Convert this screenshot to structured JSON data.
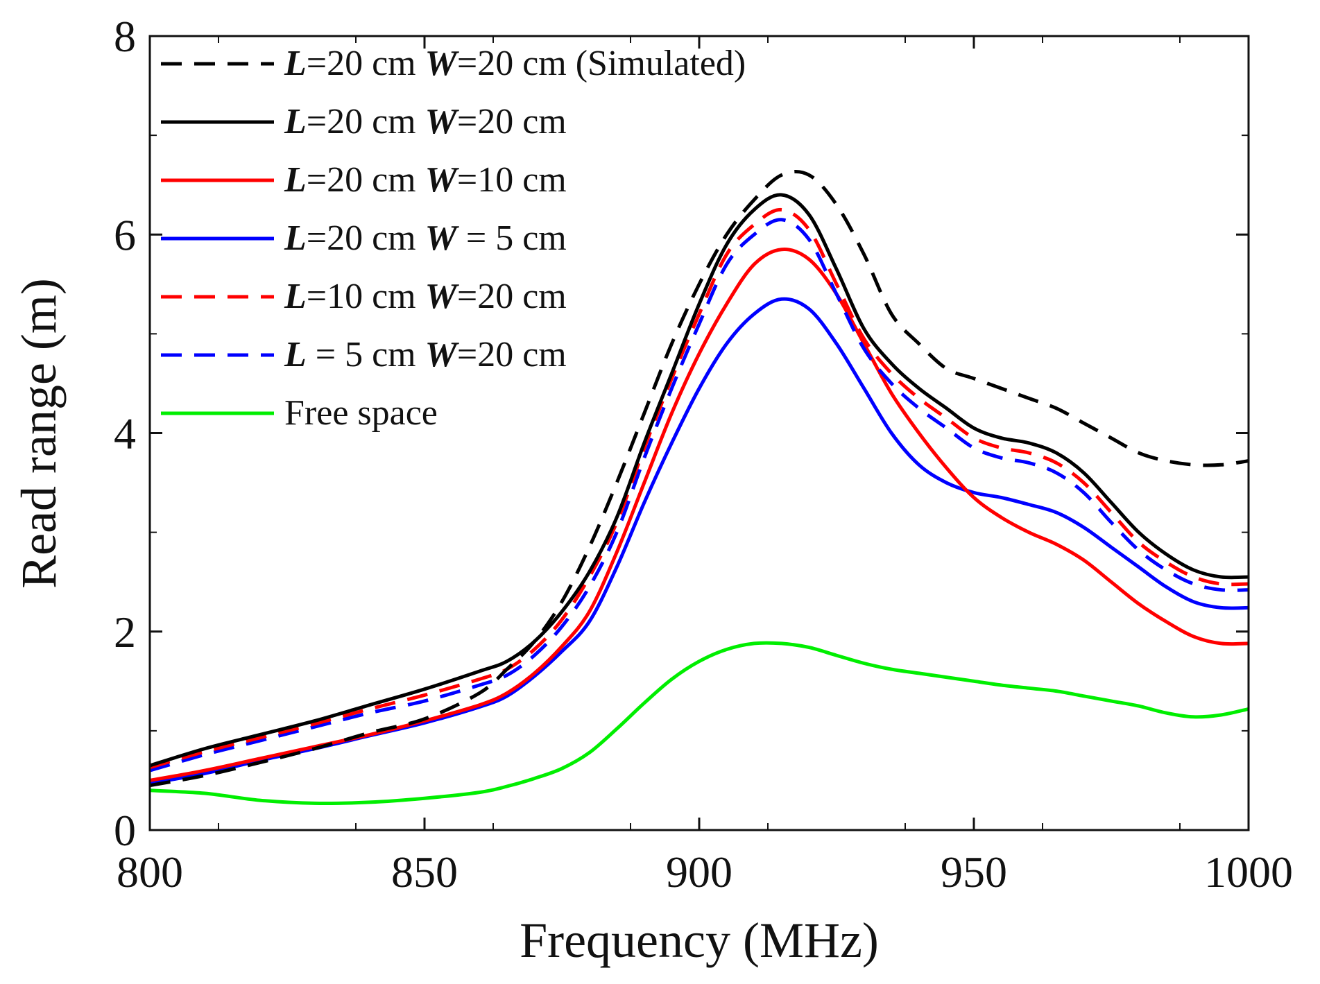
{
  "chart_data": {
    "type": "line",
    "title": "",
    "xlabel": "Frequency (MHz)",
    "ylabel": "Read range (m)",
    "xlim": [
      800,
      1000
    ],
    "ylim": [
      0,
      8
    ],
    "xticks": [
      "800",
      "850",
      "900",
      "950",
      "1000"
    ],
    "yticks": [
      "0",
      "2",
      "4",
      "6",
      "8"
    ],
    "legend_position": "top-left",
    "x": [
      800,
      810,
      820,
      830,
      840,
      850,
      860,
      865,
      870,
      875,
      880,
      885,
      890,
      895,
      900,
      905,
      910,
      915,
      920,
      925,
      930,
      935,
      940,
      945,
      950,
      955,
      960,
      965,
      970,
      975,
      980,
      985,
      990,
      995,
      1000
    ],
    "series": [
      {
        "name": "L=20 cm W=20 cm (Simulated)",
        "legend_parts": [
          {
            "text": "L",
            "bi": true
          },
          {
            "text": "=20 cm ",
            "bi": false
          },
          {
            "text": "W",
            "bi": true
          },
          {
            "text": "=20 cm (Simulated)",
            "bi": false
          }
        ],
        "color": "#000000",
        "dashed": true,
        "values": [
          0.45,
          0.55,
          0.68,
          0.82,
          0.98,
          1.12,
          1.38,
          1.62,
          1.9,
          2.3,
          2.85,
          3.5,
          4.2,
          4.9,
          5.5,
          6.0,
          6.35,
          6.6,
          6.6,
          6.3,
          5.8,
          5.2,
          4.9,
          4.65,
          4.55,
          4.45,
          4.35,
          4.25,
          4.1,
          3.95,
          3.8,
          3.72,
          3.68,
          3.68,
          3.72
        ]
      },
      {
        "name": "L=20 cm W=20 cm",
        "legend_parts": [
          {
            "text": "L",
            "bi": true
          },
          {
            "text": "=20 cm ",
            "bi": false
          },
          {
            "text": "W",
            "bi": true
          },
          {
            "text": "=20 cm",
            "bi": false
          }
        ],
        "color": "#000000",
        "dashed": false,
        "values": [
          0.65,
          0.82,
          0.96,
          1.1,
          1.26,
          1.42,
          1.6,
          1.7,
          1.9,
          2.2,
          2.6,
          3.15,
          3.9,
          4.6,
          5.3,
          5.9,
          6.25,
          6.4,
          6.2,
          5.65,
          5.05,
          4.7,
          4.45,
          4.25,
          4.05,
          3.95,
          3.9,
          3.8,
          3.6,
          3.3,
          3.0,
          2.78,
          2.62,
          2.55,
          2.55
        ]
      },
      {
        "name": "L=20 cm W=10 cm",
        "legend_parts": [
          {
            "text": "L",
            "bi": true
          },
          {
            "text": "=20 cm ",
            "bi": false
          },
          {
            "text": "W",
            "bi": true
          },
          {
            "text": "=10 cm",
            "bi": false
          }
        ],
        "color": "#ff0000",
        "dashed": false,
        "values": [
          0.5,
          0.6,
          0.72,
          0.84,
          0.96,
          1.1,
          1.26,
          1.38,
          1.58,
          1.85,
          2.2,
          2.8,
          3.5,
          4.2,
          4.8,
          5.3,
          5.7,
          5.85,
          5.75,
          5.4,
          4.9,
          4.4,
          4.0,
          3.65,
          3.35,
          3.15,
          3.0,
          2.88,
          2.72,
          2.5,
          2.28,
          2.1,
          1.95,
          1.88,
          1.88
        ]
      },
      {
        "name": "L=20 cm W = 5 cm",
        "legend_parts": [
          {
            "text": "L",
            "bi": true
          },
          {
            "text": "=20 cm ",
            "bi": false
          },
          {
            "text": "W",
            "bi": true
          },
          {
            "text": " = 5 cm",
            "bi": false
          }
        ],
        "color": "#0000ff",
        "dashed": false,
        "values": [
          0.47,
          0.57,
          0.7,
          0.82,
          0.95,
          1.08,
          1.24,
          1.35,
          1.55,
          1.8,
          2.1,
          2.65,
          3.3,
          3.9,
          4.45,
          4.9,
          5.2,
          5.35,
          5.25,
          4.9,
          4.45,
          4.0,
          3.68,
          3.5,
          3.4,
          3.35,
          3.28,
          3.2,
          3.05,
          2.85,
          2.65,
          2.45,
          2.3,
          2.24,
          2.24
        ]
      },
      {
        "name": "L=10 cm W=20 cm",
        "legend_parts": [
          {
            "text": "L",
            "bi": true
          },
          {
            "text": "=10 cm ",
            "bi": false
          },
          {
            "text": "W",
            "bi": true
          },
          {
            "text": "=20 cm",
            "bi": false
          }
        ],
        "color": "#ff0000",
        "dashed": true,
        "values": [
          0.63,
          0.79,
          0.93,
          1.07,
          1.22,
          1.36,
          1.52,
          1.62,
          1.82,
          2.12,
          2.55,
          3.1,
          3.85,
          4.55,
          5.2,
          5.8,
          6.1,
          6.25,
          6.05,
          5.5,
          4.95,
          4.6,
          4.35,
          4.15,
          3.95,
          3.85,
          3.8,
          3.7,
          3.5,
          3.2,
          2.9,
          2.7,
          2.55,
          2.48,
          2.48
        ]
      },
      {
        "name": "L = 5 cm W=20 cm",
        "legend_parts": [
          {
            "text": "L",
            "bi": true
          },
          {
            "text": " = 5 cm ",
            "bi": false
          },
          {
            "text": "W",
            "bi": true
          },
          {
            "text": "=20 cm",
            "bi": false
          }
        ],
        "color": "#0000ff",
        "dashed": true,
        "values": [
          0.6,
          0.76,
          0.9,
          1.04,
          1.18,
          1.3,
          1.46,
          1.56,
          1.76,
          2.05,
          2.45,
          3.0,
          3.75,
          4.45,
          5.1,
          5.7,
          6.0,
          6.15,
          5.95,
          5.4,
          4.85,
          4.5,
          4.25,
          4.05,
          3.85,
          3.75,
          3.7,
          3.6,
          3.4,
          3.1,
          2.82,
          2.62,
          2.48,
          2.42,
          2.42
        ]
      },
      {
        "name": "Free space",
        "legend_parts": [
          {
            "text": "Free space",
            "bi": false
          }
        ],
        "color": "#00ee00",
        "dashed": false,
        "values": [
          0.4,
          0.37,
          0.3,
          0.27,
          0.28,
          0.32,
          0.38,
          0.44,
          0.52,
          0.62,
          0.78,
          1.02,
          1.28,
          1.52,
          1.7,
          1.82,
          1.88,
          1.88,
          1.84,
          1.76,
          1.68,
          1.62,
          1.58,
          1.54,
          1.5,
          1.46,
          1.43,
          1.4,
          1.35,
          1.3,
          1.25,
          1.18,
          1.14,
          1.16,
          1.22
        ]
      }
    ]
  }
}
